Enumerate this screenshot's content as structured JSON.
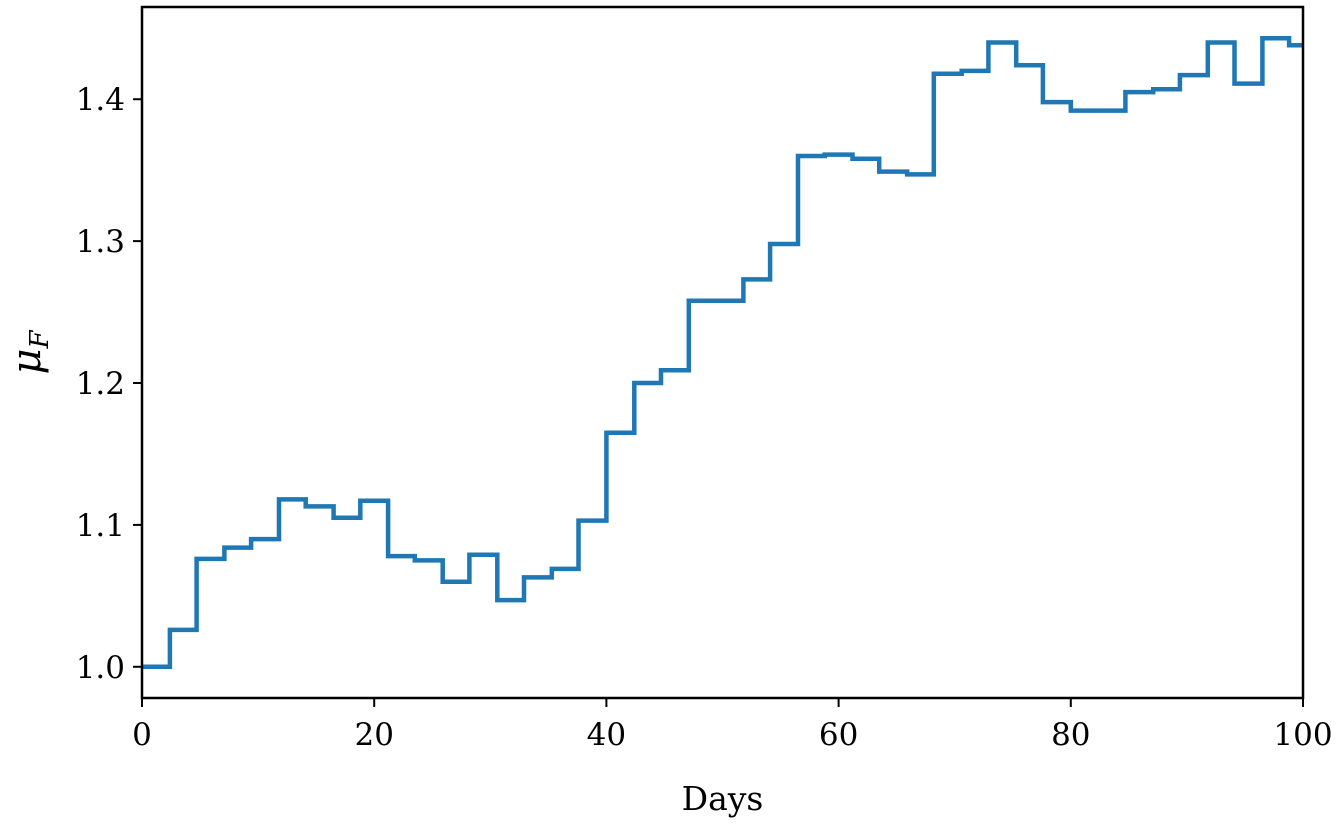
{
  "chart_data": {
    "type": "line",
    "drawstyle": "steps-post",
    "xlabel": "Days",
    "ylabel": "μ",
    "ylabel_subscript": "F",
    "title": "",
    "xlim": [
      0,
      100
    ],
    "ylim": [
      0.978,
      1.465
    ],
    "xticks": [
      0,
      20,
      40,
      60,
      80,
      100
    ],
    "xtick_labels": [
      "0",
      "20",
      "40",
      "60",
      "80",
      "100"
    ],
    "yticks": [
      1.0,
      1.1,
      1.2,
      1.3,
      1.4
    ],
    "ytick_labels": [
      "1.0",
      "1.1",
      "1.2",
      "1.3",
      "1.4"
    ],
    "grid": false,
    "legend": "none",
    "series": [
      {
        "color": "#1f77b4",
        "x": [
          0,
          2.4,
          4.7,
          7.1,
          9.4,
          11.8,
          14.1,
          16.5,
          18.8,
          21.2,
          23.5,
          25.9,
          28.2,
          30.6,
          32.9,
          35.3,
          37.6,
          40.0,
          42.4,
          44.7,
          47.1,
          49.4,
          51.8,
          54.1,
          56.5,
          58.8,
          61.2,
          63.5,
          65.9,
          68.2,
          70.6,
          72.9,
          75.3,
          77.6,
          80.0,
          82.4,
          84.7,
          87.1,
          89.4,
          91.8,
          94.1,
          96.5,
          98.8,
          100
        ],
        "y": [
          1.0,
          1.026,
          1.076,
          1.084,
          1.09,
          1.118,
          1.113,
          1.105,
          1.117,
          1.078,
          1.075,
          1.06,
          1.079,
          1.047,
          1.063,
          1.069,
          1.103,
          1.165,
          1.2,
          1.209,
          1.258,
          1.258,
          1.273,
          1.298,
          1.36,
          1.361,
          1.358,
          1.349,
          1.347,
          1.418,
          1.42,
          1.44,
          1.424,
          1.398,
          1.392,
          1.392,
          1.405,
          1.407,
          1.417,
          1.44,
          1.411,
          1.443,
          1.438,
          1.438
        ]
      }
    ]
  }
}
